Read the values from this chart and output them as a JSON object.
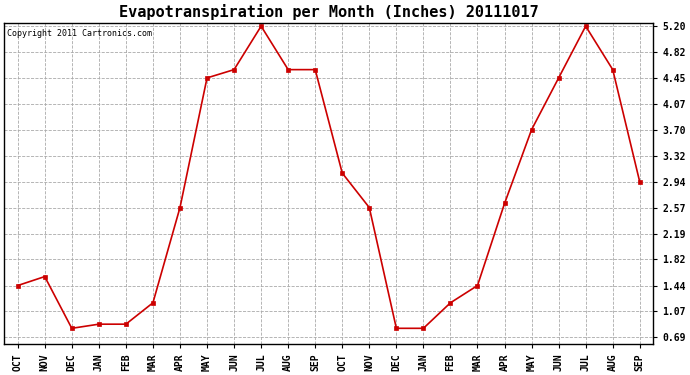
{
  "title": "Evapotranspiration per Month (Inches) 20111017",
  "copyright": "Copyright 2011 Cartronics.com",
  "x_labels": [
    "OCT",
    "NOV",
    "DEC",
    "JAN",
    "FEB",
    "MAR",
    "APR",
    "MAY",
    "JUN",
    "JUL",
    "AUG",
    "SEP",
    "OCT",
    "NOV",
    "DEC",
    "JAN",
    "FEB",
    "MAR",
    "APR",
    "MAY",
    "JUN",
    "JUL",
    "AUG",
    "SEP"
  ],
  "y_values": [
    1.44,
    1.57,
    0.82,
    0.88,
    0.88,
    1.19,
    2.57,
    4.45,
    4.57,
    5.2,
    4.57,
    4.57,
    3.07,
    2.57,
    0.82,
    0.82,
    1.19,
    1.44,
    2.63,
    3.7,
    4.45,
    5.2,
    4.57,
    2.94
  ],
  "y_ticks": [
    0.69,
    1.07,
    1.44,
    1.82,
    2.19,
    2.57,
    2.94,
    3.32,
    3.7,
    4.07,
    4.45,
    4.82,
    5.2
  ],
  "line_color": "#cc0000",
  "marker": "s",
  "marker_size": 3,
  "bg_color": "#ffffff",
  "plot_bg_color": "#ffffff",
  "grid_color": "#aaaaaa",
  "title_fontsize": 11,
  "tick_fontsize": 7,
  "copyright_fontsize": 6,
  "figwidth": 6.9,
  "figheight": 3.75,
  "dpi": 100
}
